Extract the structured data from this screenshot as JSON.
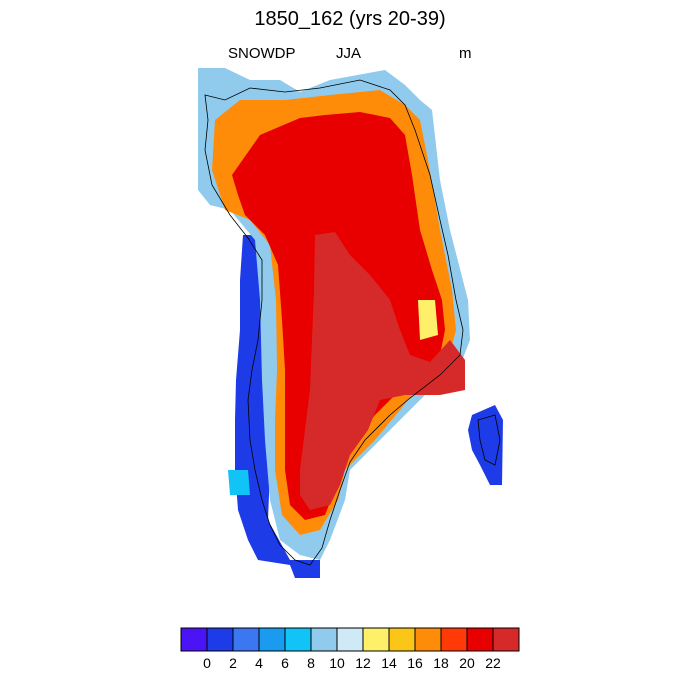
{
  "title": "1850_162 (yrs 20-39)",
  "subtitle_left": "SNOWDP",
  "subtitle_center": "JJA",
  "subtitle_right": "m",
  "colorbar": {
    "colors": [
      "#4b14f4",
      "#1e3be8",
      "#3a77f0",
      "#1a9bf0",
      "#12c3f7",
      "#90cbee",
      "#cfe9f6",
      "#fff06a",
      "#fbc617",
      "#ff8c08",
      "#ff3a06",
      "#e80000",
      "#d62a2a"
    ],
    "labels": [
      "0",
      "2",
      "4",
      "6",
      "8",
      "10",
      "12",
      "14",
      "16",
      "18",
      "20",
      "22"
    ]
  }
}
